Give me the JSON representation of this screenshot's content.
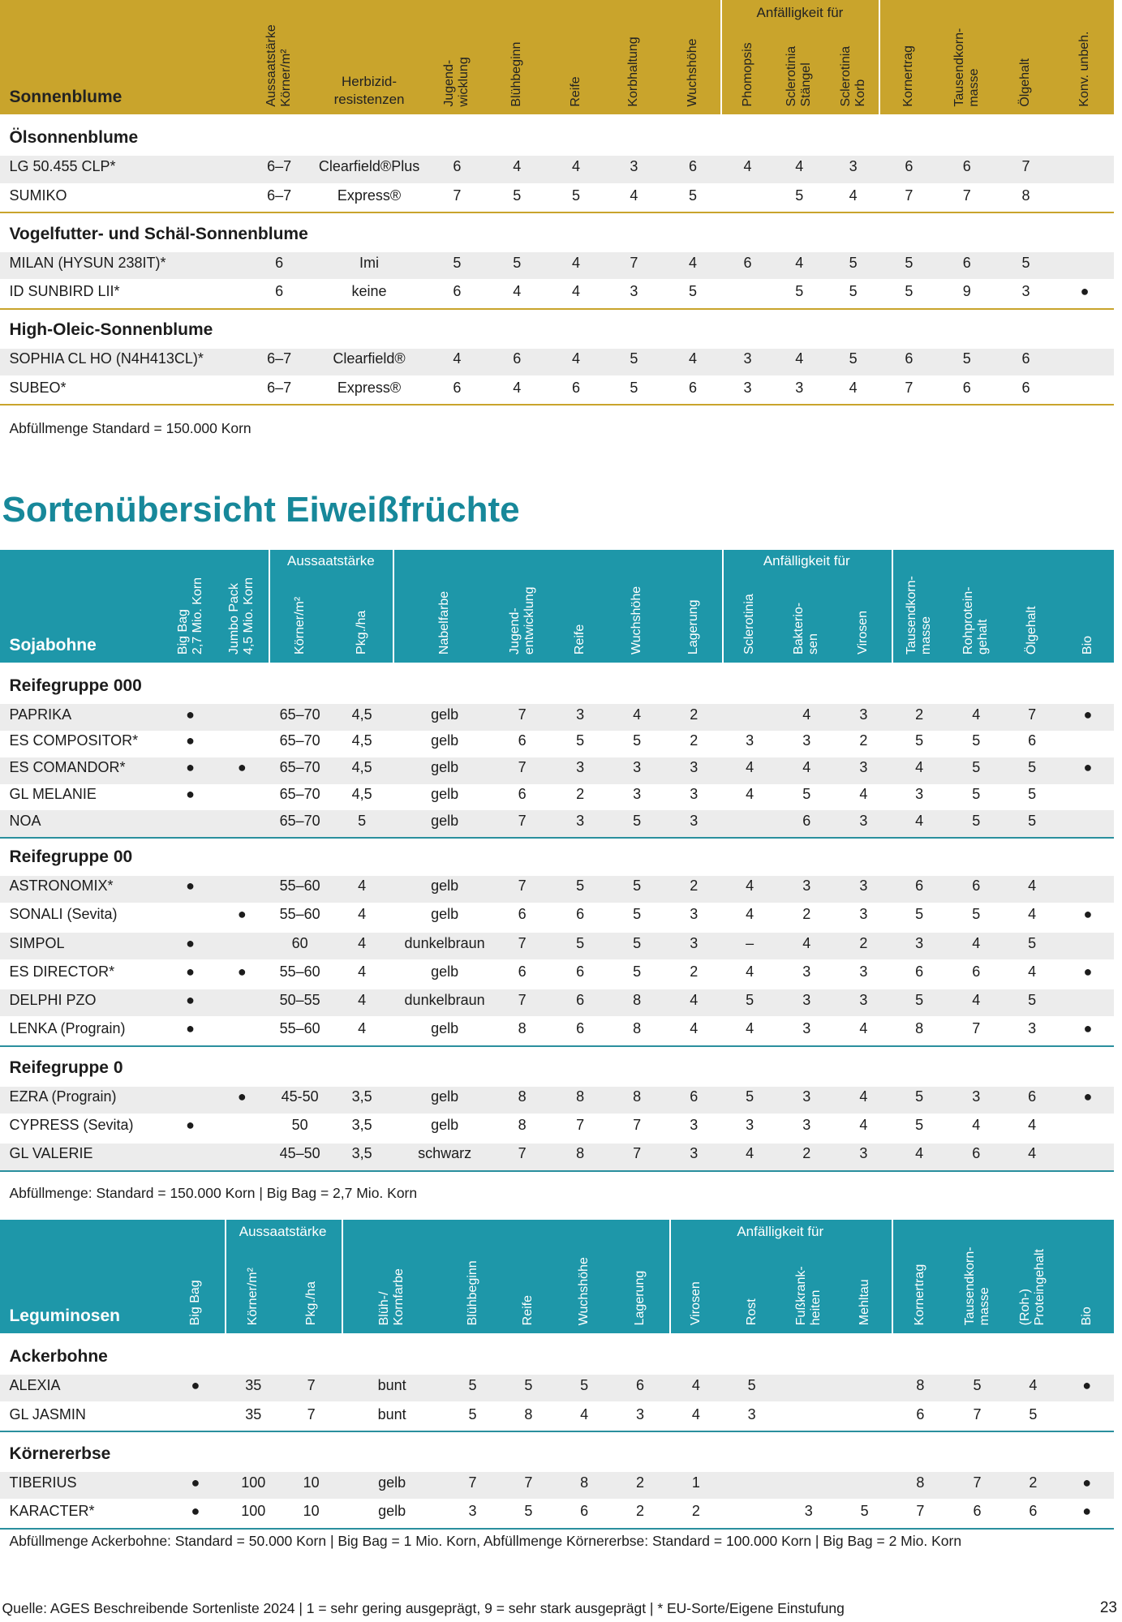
{
  "tables": [
    {
      "name": "Sonnenblume",
      "groups": [
        "Anfälligkeit für"
      ],
      "columns": [
        [
          "Aussaatstärke",
          "Körner/m²"
        ],
        [
          "Herbizid-",
          "resistenzen"
        ],
        [
          "Jugend-",
          "wicklung"
        ],
        [
          "Blühbeginn"
        ],
        [
          "Reife"
        ],
        [
          "Korbhaltung"
        ],
        [
          "Wuchshöhe"
        ],
        [
          "Phomopsis"
        ],
        [
          "Sclerotinia",
          "Stängel"
        ],
        [
          "Sclerotinia",
          "Korb"
        ],
        [
          "Kornertrag"
        ],
        [
          "Tausendkorn-",
          "masse"
        ],
        [
          "Ölgehalt"
        ],
        [
          "Konv. unbeh."
        ]
      ],
      "sections": [
        {
          "title": "Ölsonnenblume",
          "rows": [
            [
              "LG 50.455 CLP*",
              "6–7",
              "Clearfield®Plus",
              6,
              4,
              4,
              3,
              6,
              4,
              4,
              3,
              6,
              6,
              7,
              null
            ],
            [
              "SUMIKO",
              "6–7",
              "Express®",
              7,
              5,
              5,
              4,
              5,
              null,
              5,
              4,
              7,
              7,
              8,
              null
            ]
          ]
        },
        {
          "title": "Vogelfutter- und Schäl-Sonnenblume",
          "rows": [
            [
              "MILAN (HYSUN 238IT)*",
              6,
              "Imi",
              5,
              5,
              4,
              7,
              4,
              6,
              4,
              5,
              5,
              6,
              5,
              null
            ],
            [
              "ID SUNBIRD LII*",
              6,
              "keine",
              6,
              4,
              4,
              3,
              5,
              null,
              5,
              5,
              5,
              9,
              3,
              "●"
            ]
          ]
        },
        {
          "title": "High-Oleic-Sonnenblume",
          "rows": [
            [
              "SOPHIA CL HO (N4H413CL)*",
              "6–7",
              "Clearfield®",
              4,
              6,
              4,
              5,
              4,
              3,
              4,
              5,
              6,
              5,
              6,
              null
            ],
            [
              "SUBEO*",
              "6–7",
              "Express®",
              6,
              4,
              6,
              5,
              6,
              3,
              3,
              4,
              7,
              6,
              6,
              null
            ]
          ]
        }
      ],
      "note": "Abfüllmenge Standard = 150.000 Korn"
    },
    {
      "name": "Sojabohne",
      "groups": [
        "Aussaatstärke",
        "Anfälligkeit für"
      ],
      "columns": [
        [
          "Big Bag",
          "2,7 Mio. Korn"
        ],
        [
          "Jumbo Pack",
          "4,5 Mio. Korn"
        ],
        [
          "Körner/m²"
        ],
        [
          "Pkg./ha"
        ],
        [
          "Nabelfarbe"
        ],
        [
          "Jugend-",
          "entwicklung"
        ],
        [
          "Reife"
        ],
        [
          "Wuchshöhe"
        ],
        [
          "Lagerung"
        ],
        [
          "Sclerotinia"
        ],
        [
          "Bakterio-",
          "sen"
        ],
        [
          "Virosen"
        ],
        [
          "Tausendkorn-",
          "masse"
        ],
        [
          "Rohprotein-",
          "gehalt"
        ],
        [
          "Ölgehalt"
        ],
        [
          "Bio"
        ]
      ],
      "sections": [
        {
          "title": "Reifegruppe 000",
          "rows": [
            [
              "PAPRIKA",
              "●",
              null,
              "65–70",
              "4,5",
              "gelb",
              7,
              3,
              4,
              2,
              null,
              4,
              3,
              2,
              4,
              7,
              "●"
            ],
            [
              "ES COMPOSITOR*",
              "●",
              null,
              "65–70",
              "4,5",
              "gelb",
              6,
              5,
              5,
              2,
              3,
              3,
              2,
              5,
              5,
              6,
              null
            ],
            [
              "ES COMANDOR*",
              "●",
              "●",
              "65–70",
              "4,5",
              "gelb",
              7,
              3,
              3,
              3,
              4,
              4,
              3,
              4,
              5,
              5,
              "●"
            ],
            [
              "GL MELANIE",
              "●",
              null,
              "65–70",
              "4,5",
              "gelb",
              6,
              2,
              3,
              3,
              4,
              5,
              4,
              3,
              5,
              5,
              null
            ],
            [
              "NOA",
              null,
              null,
              "65–70",
              5,
              "gelb",
              7,
              3,
              5,
              3,
              null,
              6,
              3,
              4,
              5,
              5,
              null
            ]
          ]
        },
        {
          "title": "Reifegruppe 00",
          "rows": [
            [
              "ASTRONOMIX*",
              "●",
              null,
              "55–60",
              4,
              "gelb",
              7,
              5,
              5,
              2,
              4,
              3,
              3,
              6,
              6,
              4,
              null
            ],
            [
              "SONALI (Sevita)",
              null,
              "●",
              "55–60",
              4,
              "gelb",
              6,
              6,
              5,
              3,
              4,
              2,
              3,
              5,
              5,
              4,
              "●"
            ],
            [
              "SIMPOL",
              "●",
              null,
              60,
              4,
              "dunkelbraun",
              7,
              5,
              5,
              3,
              "–",
              4,
              2,
              3,
              4,
              5,
              null
            ],
            [
              "ES DIRECTOR*",
              "●",
              "●",
              "55–60",
              4,
              "gelb",
              6,
              6,
              5,
              2,
              4,
              3,
              3,
              6,
              6,
              4,
              "●"
            ],
            [
              "DELPHI PZO",
              "●",
              null,
              "50–55",
              4,
              "dunkelbraun",
              7,
              6,
              8,
              4,
              5,
              3,
              3,
              5,
              4,
              5,
              null
            ],
            [
              "LENKA (Prograin)",
              "●",
              null,
              "55–60",
              4,
              "gelb",
              8,
              6,
              8,
              4,
              4,
              3,
              4,
              8,
              7,
              3,
              "●"
            ]
          ]
        },
        {
          "title": "Reifegruppe 0",
          "rows": [
            [
              "EZRA (Prograin)",
              null,
              "●",
              "45-50",
              "3,5",
              "gelb",
              8,
              8,
              8,
              6,
              5,
              3,
              4,
              5,
              3,
              6,
              "●"
            ],
            [
              "CYPRESS (Sevita)",
              "●",
              null,
              50,
              "3,5",
              "gelb",
              8,
              7,
              7,
              3,
              3,
              3,
              4,
              5,
              4,
              4,
              null
            ],
            [
              "GL VALERIE",
              null,
              null,
              "45–50",
              "3,5",
              "schwarz",
              7,
              8,
              7,
              3,
              4,
              2,
              3,
              4,
              6,
              4,
              null
            ]
          ]
        }
      ],
      "note": "Abfüllmenge: Standard = 150.000 Korn | Big Bag = 2,7 Mio. Korn"
    },
    {
      "name": "Leguminosen",
      "groups": [
        "Aussaatstärke",
        "Anfälligkeit für"
      ],
      "columns": [
        [
          "Big Bag"
        ],
        [
          "Körner/m²"
        ],
        [
          "Pkg./ha"
        ],
        [
          "Blüh-/",
          "Kornfarbe"
        ],
        [
          "Blühbeginn"
        ],
        [
          "Reife"
        ],
        [
          "Wuchshöhe"
        ],
        [
          "Lagerung"
        ],
        [
          "Virosen"
        ],
        [
          "Rost"
        ],
        [
          "Fußkrank-",
          "heiten"
        ],
        [
          "Mehltau"
        ],
        [
          "Kornertrag"
        ],
        [
          "Tausendkorn-",
          "masse"
        ],
        [
          "(Roh-)",
          "Proteingehalt"
        ],
        [
          "Bio"
        ]
      ],
      "sections": [
        {
          "title": "Ackerbohne",
          "rows": [
            [
              "ALEXIA",
              "●",
              35,
              7,
              "bunt",
              5,
              5,
              5,
              6,
              4,
              5,
              null,
              null,
              8,
              5,
              4,
              "●"
            ],
            [
              "GL JASMIN",
              null,
              35,
              7,
              "bunt",
              5,
              8,
              4,
              3,
              4,
              3,
              null,
              null,
              6,
              7,
              5,
              null
            ]
          ]
        },
        {
          "title": "Körnererbse",
          "rows": [
            [
              "TIBERIUS",
              "●",
              100,
              10,
              "gelb",
              7,
              7,
              8,
              2,
              1,
              null,
              null,
              null,
              8,
              7,
              2,
              "●"
            ],
            [
              "KARACTER*",
              "●",
              100,
              10,
              "gelb",
              3,
              5,
              6,
              2,
              2,
              null,
              3,
              5,
              7,
              6,
              6,
              "●"
            ]
          ]
        }
      ],
      "note": "Abfüllmenge Ackerbohne: Standard = 50.000 Korn | Big Bag = 1 Mio. Korn, Abfüllmenge Körnererbse: Standard = 100.000 Korn | Big Bag = 2 Mio. Korn"
    }
  ],
  "heading": "Sortenübersicht Eiweißfrüchte",
  "footer": {
    "source": "Quelle: AGES Beschreibende Sortenliste 2024 | 1 = sehr gering ausgeprägt, 9 = sehr stark ausgeprägt | * EU-Sorte/Eigene Einstufung",
    "page": 23
  }
}
